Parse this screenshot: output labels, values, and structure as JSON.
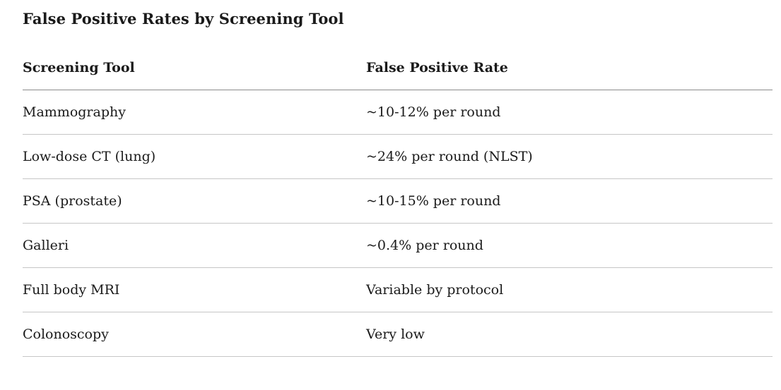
{
  "page": {
    "title": "False Positive Rates by Screening Tool"
  },
  "table": {
    "columns": [
      "Screening Tool",
      "False Positive Rate"
    ],
    "rows": [
      [
        "Mammography",
        "~10-12% per round"
      ],
      [
        "Low-dose CT (lung)",
        "~24% per round (NLST)"
      ],
      [
        "PSA (prostate)",
        "~10-15% per round"
      ],
      [
        "Galleri",
        "~0.4% per round"
      ],
      [
        "Full body MRI",
        "Variable by protocol"
      ],
      [
        "Colonoscopy",
        "Very low"
      ]
    ]
  },
  "colors": {
    "text": "#1a1a1a",
    "header_rule": "#8c8c8c",
    "row_rule": "#c6c6c6",
    "background": "#ffffff"
  }
}
